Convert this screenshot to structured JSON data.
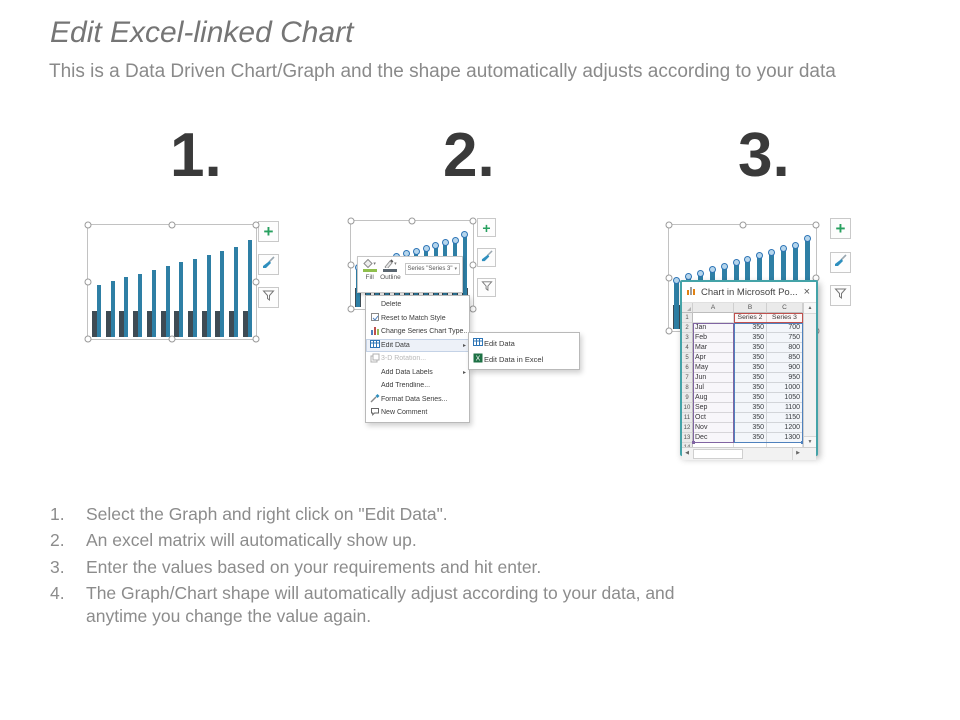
{
  "slide": {
    "title": "Edit Excel-linked Chart",
    "subtitle": "This is a Data Driven Chart/Graph and the shape automatically adjusts according to your data"
  },
  "steps": [
    {
      "number": "1."
    },
    {
      "number": "2."
    },
    {
      "number": "3."
    }
  ],
  "chart_data": {
    "type": "bar",
    "title": "",
    "categories": [
      "Jan",
      "Feb",
      "Mar",
      "Apr",
      "May",
      "Jun",
      "Jul",
      "Aug",
      "Sep",
      "Oct",
      "Nov",
      "Dec"
    ],
    "series": [
      {
        "name": "Series 2",
        "color": "#3e4b54",
        "values": [
          350,
          350,
          350,
          350,
          350,
          350,
          350,
          350,
          350,
          350,
          350,
          350
        ]
      },
      {
        "name": "Series 3",
        "color": "#2e7fa5",
        "values": [
          700,
          750,
          800,
          850,
          900,
          950,
          1000,
          1050,
          1100,
          1150,
          1200,
          1300
        ]
      }
    ],
    "ylim": [
      0,
      1300
    ],
    "grid": false,
    "legend_position": "none"
  },
  "icons": {
    "chart_elements_plus": "+"
  },
  "mini_toolbar": {
    "fill_label": "Fill",
    "outline_label": "Outline",
    "series_selector": "Series \"Series 3\"",
    "dropdown_arrow": "▾"
  },
  "context_menu": {
    "items": [
      {
        "label": "Delete",
        "icon": "",
        "submenu": false,
        "disabled": false,
        "highlighted": false
      },
      {
        "label": "Reset to Match Style",
        "icon": "reset-style-icon",
        "submenu": false,
        "disabled": false,
        "highlighted": false
      },
      {
        "label": "Change Series Chart Type...",
        "icon": "chart-type-icon",
        "submenu": false,
        "disabled": false,
        "highlighted": false
      },
      {
        "label": "Edit Data",
        "icon": "edit-data-icon",
        "submenu": true,
        "disabled": false,
        "highlighted": true
      },
      {
        "label": "3-D Rotation...",
        "icon": "rotation-icon",
        "submenu": false,
        "disabled": true,
        "highlighted": false
      },
      {
        "label": "Add Data Labels",
        "icon": "",
        "submenu": true,
        "disabled": false,
        "highlighted": false
      },
      {
        "label": "Add Trendline...",
        "icon": "",
        "submenu": false,
        "disabled": false,
        "highlighted": false
      },
      {
        "label": "Format Data Series...",
        "icon": "format-series-icon",
        "submenu": false,
        "disabled": false,
        "highlighted": false
      },
      {
        "label": "New Comment",
        "icon": "comment-icon",
        "submenu": false,
        "disabled": false,
        "highlighted": false
      }
    ],
    "submenu_items": [
      {
        "label": "Edit Data",
        "icon": "edit-data-icon"
      },
      {
        "label": "Edit Data in Excel",
        "icon": "excel-icon"
      }
    ]
  },
  "excel_window": {
    "title": "Chart in Microsoft Po...",
    "close": "×",
    "column_headers": [
      "A",
      "B",
      "C"
    ],
    "rows": [
      {
        "n": "1",
        "a": "",
        "b": "Series 2",
        "c": "Series 3"
      },
      {
        "n": "2",
        "a": "Jan",
        "b": "350",
        "c": "700"
      },
      {
        "n": "3",
        "a": "Feb",
        "b": "350",
        "c": "750"
      },
      {
        "n": "4",
        "a": "Mar",
        "b": "350",
        "c": "800"
      },
      {
        "n": "5",
        "a": "Apr",
        "b": "350",
        "c": "850"
      },
      {
        "n": "6",
        "a": "May",
        "b": "350",
        "c": "900"
      },
      {
        "n": "7",
        "a": "Jun",
        "b": "350",
        "c": "950"
      },
      {
        "n": "8",
        "a": "Jul",
        "b": "350",
        "c": "1000"
      },
      {
        "n": "9",
        "a": "Aug",
        "b": "350",
        "c": "1050"
      },
      {
        "n": "10",
        "a": "Sep",
        "b": "350",
        "c": "1100"
      },
      {
        "n": "11",
        "a": "Oct",
        "b": "350",
        "c": "1150"
      },
      {
        "n": "12",
        "a": "Nov",
        "b": "350",
        "c": "1200"
      },
      {
        "n": "13",
        "a": "Dec",
        "b": "350",
        "c": "1300"
      }
    ],
    "partial_row_number": "14"
  },
  "instructions": {
    "items": [
      "Select the Graph and right click on \"Edit Data\".",
      "An excel matrix will automatically show up.",
      "Enter the values based on your requirements and hit enter.",
      "The Graph/Chart shape will automatically adjust according to your data, and anytime you change the value again."
    ]
  },
  "colors": {
    "series2_bar": "#3e4b54",
    "series3_bar": "#2e7fa5",
    "excel_window_border": "#44a3a8",
    "selection_red": "#c0504d",
    "selection_purple": "#8064a2",
    "selection_blue": "#4f81bd",
    "step_number_text": "#3a3a3a",
    "body_text": "#8c8c8c"
  }
}
